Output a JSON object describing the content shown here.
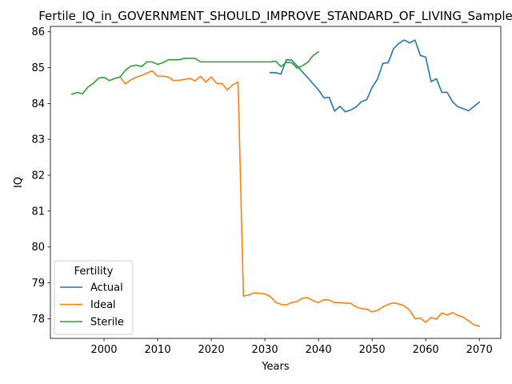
{
  "chart_data": {
    "type": "line",
    "title": "Fertile_IQ_in_GOVERNMENT_SHOULD_IMPROVE_STANDARD_OF_LIVING_Sample",
    "xlabel": "Years",
    "ylabel": "IQ",
    "xlim": [
      1990,
      2074
    ],
    "ylim": [
      77.45,
      86.15
    ],
    "xticks": [
      2000,
      2010,
      2020,
      2030,
      2040,
      2050,
      2060,
      2070
    ],
    "yticks": [
      78,
      79,
      80,
      81,
      82,
      83,
      84,
      85,
      86
    ],
    "grid": false,
    "legend": {
      "title": "Fertility",
      "placement": "lower-left"
    },
    "series": [
      {
        "name": "Actual",
        "color": "#1f77b4",
        "points": [
          [
            2031,
            84.86
          ],
          [
            2032,
            84.86
          ],
          [
            2033,
            84.82
          ],
          [
            2034,
            85.22
          ],
          [
            2035,
            85.21
          ],
          [
            2036,
            85.05
          ],
          [
            2037,
            84.88
          ],
          [
            2038,
            84.72
          ],
          [
            2039,
            84.55
          ],
          [
            2040,
            84.38
          ],
          [
            2041,
            84.16
          ],
          [
            2042,
            84.17
          ],
          [
            2043,
            83.79
          ],
          [
            2044,
            83.92
          ],
          [
            2045,
            83.77
          ],
          [
            2046,
            83.82
          ],
          [
            2047,
            83.9
          ],
          [
            2048,
            84.05
          ],
          [
            2049,
            84.11
          ],
          [
            2050,
            84.45
          ],
          [
            2051,
            84.68
          ],
          [
            2052,
            85.12
          ],
          [
            2053,
            85.14
          ],
          [
            2054,
            85.53
          ],
          [
            2055,
            85.68
          ],
          [
            2056,
            85.77
          ],
          [
            2057,
            85.69
          ],
          [
            2058,
            85.77
          ],
          [
            2059,
            85.34
          ],
          [
            2060,
            85.29
          ],
          [
            2061,
            84.61
          ],
          [
            2062,
            84.69
          ],
          [
            2063,
            84.31
          ],
          [
            2064,
            84.31
          ],
          [
            2065,
            84.05
          ],
          [
            2066,
            83.91
          ],
          [
            2068,
            83.8
          ],
          [
            2070,
            84.04
          ]
        ]
      },
      {
        "name": "Ideal",
        "color": "#ff7f0e",
        "points": [
          [
            2003,
            84.74
          ],
          [
            2004,
            84.55
          ],
          [
            2005,
            84.66
          ],
          [
            2006,
            84.73
          ],
          [
            2007,
            84.78
          ],
          [
            2008,
            84.85
          ],
          [
            2009,
            84.91
          ],
          [
            2010,
            84.76
          ],
          [
            2011,
            84.76
          ],
          [
            2012,
            84.74
          ],
          [
            2013,
            84.64
          ],
          [
            2014,
            84.65
          ],
          [
            2015,
            84.67
          ],
          [
            2016,
            84.7
          ],
          [
            2017,
            84.63
          ],
          [
            2018,
            84.76
          ],
          [
            2019,
            84.6
          ],
          [
            2020,
            84.74
          ],
          [
            2021,
            84.56
          ],
          [
            2022,
            84.56
          ],
          [
            2023,
            84.38
          ],
          [
            2024,
            84.52
          ],
          [
            2025,
            84.6
          ],
          [
            2026,
            78.63
          ],
          [
            2027,
            78.66
          ],
          [
            2028,
            78.72
          ],
          [
            2029,
            78.71
          ],
          [
            2030,
            78.69
          ],
          [
            2031,
            78.62
          ],
          [
            2032,
            78.46
          ],
          [
            2033,
            78.4
          ],
          [
            2034,
            78.38
          ],
          [
            2035,
            78.45
          ],
          [
            2036,
            78.48
          ],
          [
            2037,
            78.57
          ],
          [
            2038,
            78.59
          ],
          [
            2039,
            78.5
          ],
          [
            2040,
            78.45
          ],
          [
            2041,
            78.53
          ],
          [
            2042,
            78.52
          ],
          [
            2043,
            78.45
          ],
          [
            2044,
            78.45
          ],
          [
            2045,
            78.43
          ],
          [
            2046,
            78.43
          ],
          [
            2047,
            78.33
          ],
          [
            2048,
            78.28
          ],
          [
            2049,
            78.27
          ],
          [
            2050,
            78.19
          ],
          [
            2051,
            78.23
          ],
          [
            2052,
            78.33
          ],
          [
            2053,
            78.4
          ],
          [
            2054,
            78.44
          ],
          [
            2055,
            78.41
          ],
          [
            2056,
            78.36
          ],
          [
            2057,
            78.24
          ],
          [
            2058,
            78.0
          ],
          [
            2059,
            78.02
          ],
          [
            2060,
            77.9
          ],
          [
            2061,
            78.03
          ],
          [
            2062,
            77.99
          ],
          [
            2063,
            78.16
          ],
          [
            2064,
            78.1
          ],
          [
            2065,
            78.17
          ],
          [
            2066,
            78.09
          ],
          [
            2067,
            78.04
          ],
          [
            2068,
            77.94
          ],
          [
            2069,
            77.83
          ],
          [
            2070,
            77.79
          ]
        ]
      },
      {
        "name": "Sterile",
        "color": "#2ca02c",
        "points": [
          [
            1994,
            84.26
          ],
          [
            1995,
            84.31
          ],
          [
            1996,
            84.27
          ],
          [
            1997,
            84.46
          ],
          [
            1998,
            84.56
          ],
          [
            1999,
            84.71
          ],
          [
            2000,
            84.73
          ],
          [
            2001,
            84.64
          ],
          [
            2002,
            84.7
          ],
          [
            2003,
            84.74
          ],
          [
            2004,
            84.93
          ],
          [
            2005,
            85.04
          ],
          [
            2006,
            85.07
          ],
          [
            2007,
            85.03
          ],
          [
            2008,
            85.16
          ],
          [
            2009,
            85.16
          ],
          [
            2010,
            85.09
          ],
          [
            2011,
            85.14
          ],
          [
            2012,
            85.22
          ],
          [
            2013,
            85.22
          ],
          [
            2014,
            85.22
          ],
          [
            2015,
            85.26
          ],
          [
            2016,
            85.26
          ],
          [
            2017,
            85.26
          ],
          [
            2018,
            85.16
          ],
          [
            2019,
            85.16
          ],
          [
            2020,
            85.16
          ],
          [
            2021,
            85.16
          ],
          [
            2022,
            85.16
          ],
          [
            2023,
            85.16
          ],
          [
            2024,
            85.16
          ],
          [
            2025,
            85.16
          ],
          [
            2026,
            85.16
          ],
          [
            2027,
            85.16
          ],
          [
            2028,
            85.16
          ],
          [
            2029,
            85.16
          ],
          [
            2030,
            85.16
          ],
          [
            2031,
            85.16
          ],
          [
            2032,
            85.18
          ],
          [
            2033,
            85.03
          ],
          [
            2034,
            85.15
          ],
          [
            2035,
            85.14
          ],
          [
            2036,
            84.99
          ],
          [
            2037,
            85.05
          ],
          [
            2038,
            85.15
          ],
          [
            2039,
            85.34
          ],
          [
            2040,
            85.44
          ]
        ]
      }
    ]
  }
}
